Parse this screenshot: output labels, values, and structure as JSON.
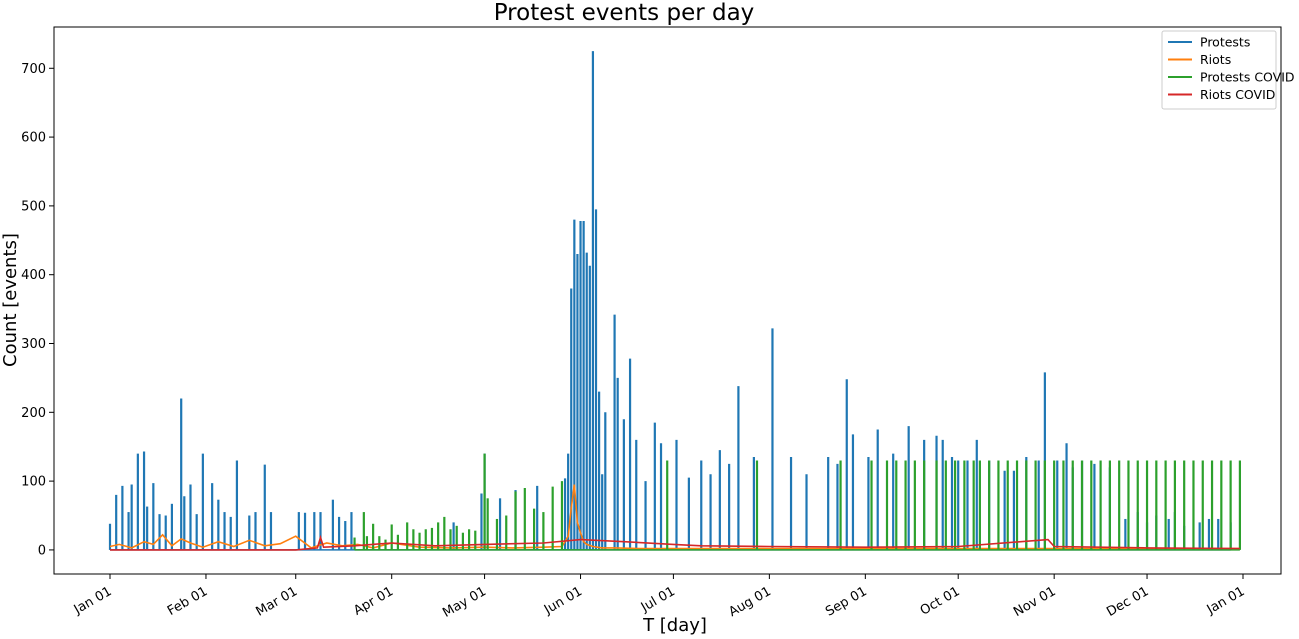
{
  "chart_data": {
    "type": "line",
    "title": "Protest events per day",
    "xlabel": "T [day]",
    "ylabel": "Count [events]",
    "x_range": [
      "2020-01-01",
      "2021-01-01"
    ],
    "ylim": [
      -35,
      760
    ],
    "yticks": [
      0,
      100,
      200,
      300,
      400,
      500,
      600,
      700
    ],
    "x_tick_labels": [
      "Jan 01",
      "Feb 01",
      "Mar 01",
      "Apr 01",
      "May 01",
      "Jun 01",
      "Jul 01",
      "Aug 01",
      "Sep 01",
      "Oct 01",
      "Nov 01",
      "Dec 01",
      "Jan 01"
    ],
    "x_tick_dates": [
      "2020-01-01",
      "2020-02-01",
      "2020-03-01",
      "2020-04-01",
      "2020-05-01",
      "2020-06-01",
      "2020-07-01",
      "2020-08-01",
      "2020-09-01",
      "2020-10-01",
      "2020-11-01",
      "2020-12-01",
      "2021-01-01"
    ],
    "grid": false,
    "legend_position": "top-right",
    "series": [
      {
        "name": "Protests",
        "color": "#1f77b4",
        "style": "spikes",
        "dates": [
          "2020-01-01",
          "2020-01-03",
          "2020-01-05",
          "2020-01-07",
          "2020-01-08",
          "2020-01-10",
          "2020-01-12",
          "2020-01-13",
          "2020-01-15",
          "2020-01-17",
          "2020-01-19",
          "2020-01-21",
          "2020-01-24",
          "2020-01-25",
          "2020-01-27",
          "2020-01-29",
          "2020-01-31",
          "2020-02-03",
          "2020-02-05",
          "2020-02-07",
          "2020-02-09",
          "2020-02-11",
          "2020-02-15",
          "2020-02-17",
          "2020-02-20",
          "2020-02-22",
          "2020-03-02",
          "2020-03-04",
          "2020-03-07",
          "2020-03-09",
          "2020-03-13",
          "2020-03-15",
          "2020-03-17",
          "2020-03-19",
          "2020-04-21",
          "2020-04-30",
          "2020-05-01",
          "2020-05-06",
          "2020-05-11",
          "2020-05-18",
          "2020-05-27",
          "2020-05-28",
          "2020-05-29",
          "2020-05-30",
          "2020-05-31",
          "2020-06-01",
          "2020-06-02",
          "2020-06-03",
          "2020-06-04",
          "2020-06-05",
          "2020-06-06",
          "2020-06-07",
          "2020-06-08",
          "2020-06-09",
          "2020-06-12",
          "2020-06-13",
          "2020-06-15",
          "2020-06-17",
          "2020-06-19",
          "2020-06-22",
          "2020-06-25",
          "2020-06-27",
          "2020-07-02",
          "2020-07-06",
          "2020-07-10",
          "2020-07-13",
          "2020-07-16",
          "2020-07-19",
          "2020-07-22",
          "2020-07-27",
          "2020-08-02",
          "2020-08-08",
          "2020-08-13",
          "2020-08-20",
          "2020-08-23",
          "2020-08-26",
          "2020-08-28",
          "2020-09-02",
          "2020-09-05",
          "2020-09-10",
          "2020-09-15",
          "2020-09-20",
          "2020-09-24",
          "2020-09-26",
          "2020-09-29",
          "2020-10-01",
          "2020-10-04",
          "2020-10-07",
          "2020-10-11",
          "2020-10-16",
          "2020-10-19",
          "2020-10-23",
          "2020-10-27",
          "2020-10-29",
          "2020-11-02",
          "2020-11-05",
          "2020-11-07",
          "2020-11-10",
          "2020-11-14",
          "2020-11-19",
          "2020-11-24",
          "2020-11-28",
          "2020-12-01",
          "2020-12-04",
          "2020-12-08",
          "2020-12-10",
          "2020-12-13",
          "2020-12-18",
          "2020-12-21",
          "2020-12-24",
          "2020-12-28"
        ],
        "values": [
          38,
          80,
          93,
          55,
          95,
          140,
          143,
          63,
          97,
          52,
          50,
          67,
          220,
          78,
          95,
          52,
          140,
          97,
          73,
          55,
          48,
          130,
          50,
          55,
          124,
          55,
          55,
          54,
          55,
          55,
          73,
          48,
          42,
          55,
          40,
          82,
          140,
          75,
          87,
          93,
          104,
          140,
          380,
          480,
          430,
          478,
          478,
          432,
          413,
          725,
          495,
          230,
          110,
          200,
          342,
          250,
          190,
          278,
          160,
          100,
          185,
          155,
          160,
          105,
          130,
          110,
          145,
          125,
          238,
          135,
          322,
          135,
          110,
          135,
          125,
          248,
          168,
          135,
          175,
          140,
          180,
          160,
          166,
          160,
          135,
          130,
          130,
          160,
          130,
          115,
          115,
          135,
          130,
          258,
          130,
          155,
          120,
          130,
          125,
          120,
          45,
          55,
          40,
          50,
          45,
          55,
          35,
          40,
          45,
          45,
          40
        ]
      },
      {
        "name": "Riots",
        "color": "#ff7f0e",
        "style": "line",
        "dates": [
          "2020-01-01",
          "2020-01-04",
          "2020-01-08",
          "2020-01-12",
          "2020-01-15",
          "2020-01-18",
          "2020-01-21",
          "2020-01-24",
          "2020-01-27",
          "2020-01-31",
          "2020-02-05",
          "2020-02-10",
          "2020-02-15",
          "2020-02-20",
          "2020-02-25",
          "2020-03-01",
          "2020-03-06",
          "2020-03-11",
          "2020-03-16",
          "2020-03-21",
          "2020-03-26",
          "2020-04-01",
          "2020-04-10",
          "2020-04-20",
          "2020-05-01",
          "2020-05-10",
          "2020-05-20",
          "2020-05-26",
          "2020-05-28",
          "2020-05-29",
          "2020-05-30",
          "2020-05-31",
          "2020-06-01",
          "2020-06-02",
          "2020-06-03",
          "2020-06-05",
          "2020-06-08",
          "2020-06-12",
          "2020-06-20",
          "2020-07-01",
          "2020-08-01",
          "2020-09-01",
          "2020-10-01",
          "2020-11-01",
          "2020-12-01",
          "2020-12-31"
        ],
        "values": [
          5,
          8,
          3,
          12,
          8,
          22,
          6,
          16,
          10,
          4,
          12,
          5,
          14,
          6,
          9,
          20,
          3,
          10,
          6,
          8,
          3,
          10,
          4,
          3,
          4,
          3,
          4,
          5,
          20,
          60,
          95,
          40,
          25,
          12,
          8,
          5,
          3,
          3,
          2,
          2,
          2,
          2,
          2,
          2,
          2,
          2
        ]
      },
      {
        "name": "Protests COVID",
        "color": "#2ca02c",
        "style": "spikes",
        "dates": [
          "2020-03-20",
          "2020-03-23",
          "2020-03-24",
          "2020-03-26",
          "2020-03-28",
          "2020-03-30",
          "2020-04-01",
          "2020-04-03",
          "2020-04-06",
          "2020-04-08",
          "2020-04-10",
          "2020-04-12",
          "2020-04-14",
          "2020-04-16",
          "2020-04-18",
          "2020-04-20",
          "2020-04-22",
          "2020-04-24",
          "2020-04-26",
          "2020-04-28",
          "2020-05-01",
          "2020-05-02",
          "2020-05-05",
          "2020-05-08",
          "2020-05-11",
          "2020-05-14",
          "2020-05-17",
          "2020-05-20",
          "2020-05-23",
          "2020-05-26",
          "2020-06-29",
          "2020-07-28",
          "2020-08-24",
          "2020-09-03",
          "2020-09-08",
          "2020-09-11",
          "2020-09-14",
          "2020-09-17",
          "2020-09-20",
          "2020-09-24",
          "2020-09-27",
          "2020-09-30",
          "2020-10-03",
          "2020-10-06",
          "2020-10-08",
          "2020-10-11",
          "2020-10-14",
          "2020-10-17",
          "2020-10-20",
          "2020-10-23",
          "2020-10-26",
          "2020-10-29",
          "2020-11-01",
          "2020-11-04",
          "2020-11-07",
          "2020-11-10",
          "2020-11-13",
          "2020-11-16",
          "2020-11-19",
          "2020-11-22",
          "2020-11-25",
          "2020-11-28",
          "2020-12-01",
          "2020-12-04",
          "2020-12-07",
          "2020-12-10",
          "2020-12-13",
          "2020-12-16",
          "2020-12-19",
          "2020-12-22",
          "2020-12-25",
          "2020-12-28",
          "2020-12-31"
        ],
        "values": [
          18,
          55,
          20,
          38,
          20,
          15,
          37,
          22,
          40,
          30,
          25,
          30,
          32,
          40,
          48,
          30,
          35,
          25,
          30,
          28,
          140,
          75,
          45,
          50,
          85,
          90,
          60,
          55,
          92,
          100,
          130,
          130,
          130,
          130,
          130,
          130,
          130,
          130,
          130,
          130,
          130,
          130,
          130,
          130,
          130,
          130,
          130,
          130,
          130,
          130,
          130,
          130,
          130,
          130,
          130,
          130,
          130,
          130,
          130,
          130,
          130,
          130,
          130,
          130,
          130,
          130,
          130,
          130,
          130,
          130,
          130,
          130,
          130
        ]
      },
      {
        "name": "Riots COVID",
        "color": "#d62728",
        "style": "line",
        "dates": [
          "2020-01-01",
          "2020-03-01",
          "2020-03-08",
          "2020-03-09",
          "2020-03-10",
          "2020-03-20",
          "2020-04-01",
          "2020-04-15",
          "2020-05-01",
          "2020-05-20",
          "2020-06-01",
          "2020-06-15",
          "2020-07-01",
          "2020-07-10",
          "2020-08-01",
          "2020-09-01",
          "2020-10-01",
          "2020-10-30",
          "2020-11-01",
          "2020-12-01",
          "2020-12-31"
        ],
        "values": [
          0,
          0,
          3,
          18,
          4,
          6,
          10,
          6,
          8,
          10,
          15,
          12,
          8,
          6,
          5,
          4,
          5,
          15,
          5,
          3,
          2
        ]
      }
    ]
  }
}
